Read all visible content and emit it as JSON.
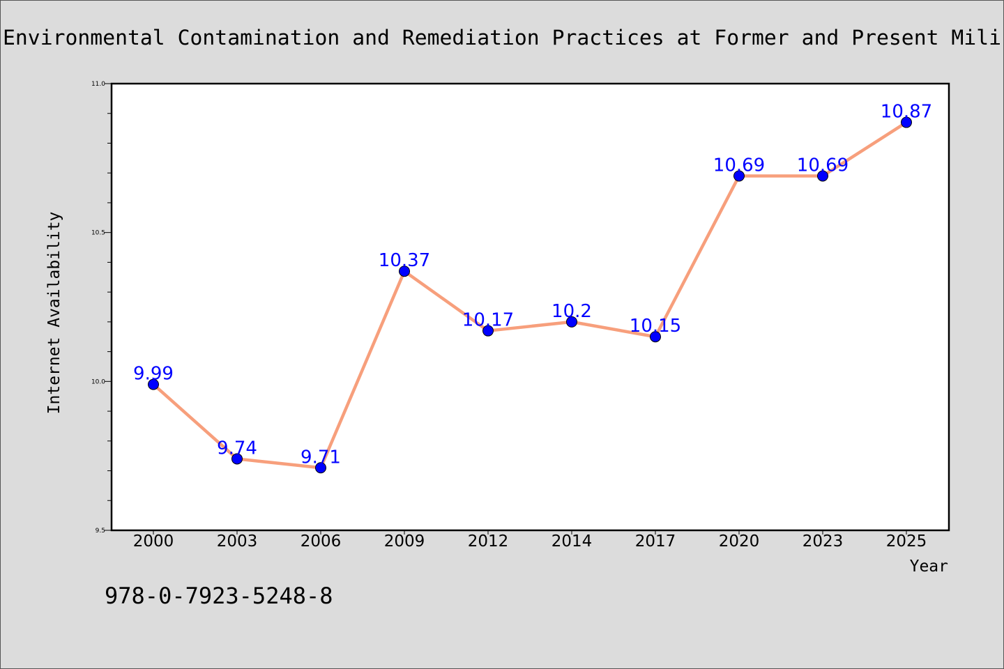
{
  "chart_data": {
    "type": "line",
    "title": "Environmental Contamination and Remediation Practices at Former and Present Mili",
    "xlabel": "Year",
    "ylabel": "Internet Availability",
    "categories": [
      "2000",
      "2003",
      "2006",
      "2009",
      "2012",
      "2014",
      "2017",
      "2020",
      "2023",
      "2025"
    ],
    "values": [
      9.99,
      9.74,
      9.71,
      10.37,
      10.17,
      10.2,
      10.15,
      10.69,
      10.69,
      10.87
    ],
    "data_labels": [
      "9.99",
      "9.74",
      "9.71",
      "10.37",
      "10.17",
      "10.2",
      "10.15",
      "10.69",
      "10.69",
      "10.87"
    ],
    "ylim": [
      9.5,
      11.0
    ],
    "y_major_ticks": [
      "9.5",
      "10.0",
      "10.5",
      "11.0"
    ],
    "y_minor_step": 0.1,
    "grid": false,
    "line_color": "#f79f7c",
    "marker_color": "#0000ff",
    "label_color": "#0000ff"
  },
  "footer": {
    "isbn": "978-0-7923-5248-8"
  }
}
